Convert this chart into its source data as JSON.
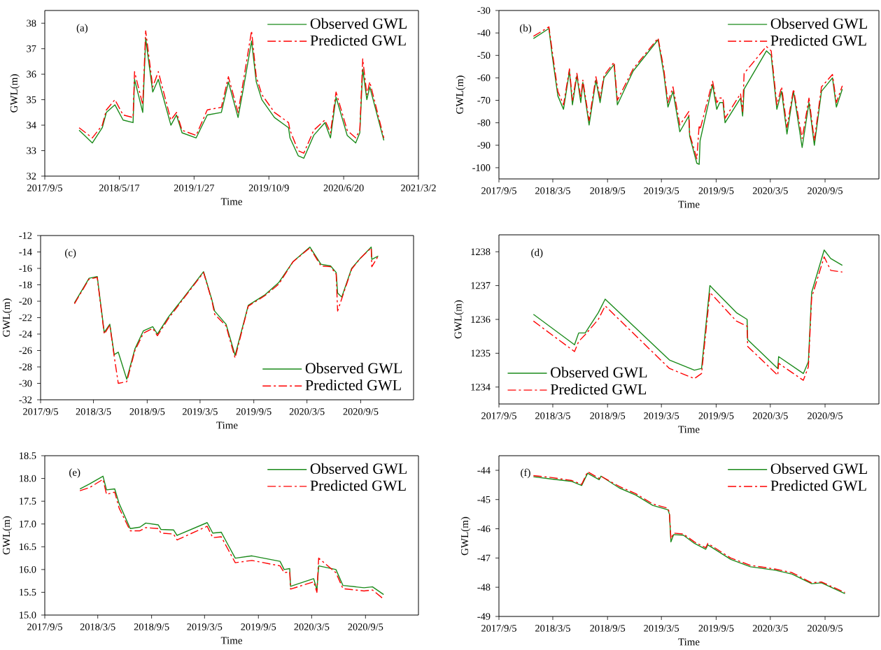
{
  "chart_data": [
    {
      "type": "line",
      "annotations": [
        "(a)"
      ],
      "xlabel": "Time",
      "ylabel": "GWL(m)",
      "legend": "top right",
      "xlim": [
        "2017-09-05",
        "2021-03-02"
      ],
      "xticks": [
        {
          "value": "2017-09-05",
          "label": "2017/9/5"
        },
        {
          "value": "2018-05-17",
          "label": "2018/5/17"
        },
        {
          "value": "2019-01-27",
          "label": "2019/1/27"
        },
        {
          "value": "2019-10-09",
          "label": "2019/10/9"
        },
        {
          "value": "2020-06-20",
          "label": "2020/6/20"
        },
        {
          "value": "2021-03-02",
          "label": "2021/3/2"
        }
      ],
      "ylim": [
        32,
        38.5
      ],
      "yticks": [
        32,
        33,
        34,
        35,
        36,
        37,
        38
      ],
      "x": [
        "2017-12-31",
        "2018-02-14",
        "2018-03-20",
        "2018-04-03",
        "2018-05-02",
        "2018-05-30",
        "2018-07-03",
        "2018-07-08",
        "2018-08-05",
        "2018-08-15",
        "2018-09-08",
        "2018-09-27",
        "2018-11-09",
        "2018-11-28",
        "2018-12-17",
        "2019-02-03",
        "2019-03-13",
        "2019-04-30",
        "2019-05-24",
        "2019-06-26",
        "2019-07-15",
        "2019-08-11",
        "2019-08-27",
        "2019-09-15",
        "2019-10-28",
        "2019-12-15",
        "2019-12-20",
        "2020-01-17",
        "2020-02-05",
        "2020-03-10",
        "2020-04-17",
        "2020-05-06",
        "2020-05-25",
        "2020-07-02",
        "2020-07-31",
        "2020-08-14",
        "2020-08-24",
        "2020-09-07",
        "2020-09-17",
        "2020-11-04"
      ],
      "series": [
        {
          "name": "Observed GWL",
          "color": "#1a8a1a",
          "line_style": "solid",
          "values": [
            33.8,
            33.3,
            33.9,
            34.5,
            34.8,
            34.2,
            34.1,
            35.8,
            34.5,
            37.4,
            35.3,
            35.8,
            34.0,
            34.4,
            33.7,
            33.5,
            34.4,
            34.5,
            35.7,
            34.3,
            35.5,
            37.3,
            35.7,
            35.0,
            34.3,
            33.9,
            33.5,
            32.8,
            32.7,
            33.6,
            34.1,
            33.5,
            35.1,
            33.6,
            33.3,
            33.7,
            36.2,
            35.0,
            35.5,
            33.4
          ]
        },
        {
          "name": "Predicted GWL",
          "color": "#ff0000",
          "line_style": "dashdot",
          "values": [
            33.9,
            33.5,
            34.0,
            34.6,
            35.0,
            34.4,
            34.3,
            36.1,
            34.8,
            37.7,
            35.5,
            36.1,
            34.2,
            34.5,
            33.8,
            33.6,
            34.6,
            34.7,
            35.9,
            34.5,
            35.8,
            37.7,
            35.9,
            35.2,
            34.5,
            34.1,
            33.8,
            33.0,
            32.9,
            33.8,
            34.2,
            33.7,
            35.3,
            33.8,
            33.5,
            33.8,
            36.6,
            35.2,
            35.7,
            33.5
          ]
        }
      ]
    },
    {
      "type": "line",
      "annotations": [
        "(b)"
      ],
      "xlabel": "Time",
      "ylabel": "GWL(m)",
      "legend": "top right",
      "xlim": [
        "2017-09-05",
        "2021-03-05"
      ],
      "xticks": [
        {
          "value": "2017-09-05",
          "label": "2017/9/5"
        },
        {
          "value": "2018-03-05",
          "label": "2018/3/5"
        },
        {
          "value": "2018-09-05",
          "label": "2018/9/5"
        },
        {
          "value": "2019-03-05",
          "label": "2019/3/5"
        },
        {
          "value": "2019-09-05",
          "label": "2019/9/5"
        },
        {
          "value": "2020-03-05",
          "label": "2020/3/5"
        },
        {
          "value": "2020-09-05",
          "label": "2020/9/5"
        }
      ],
      "ylim": [
        -105,
        -30
      ],
      "yticks": [
        -100,
        -90,
        -80,
        -70,
        -60,
        -50,
        -40,
        -30
      ],
      "x": [
        "2017-12-30",
        "2018-02-20",
        "2018-03-03",
        "2018-03-22",
        "2018-04-10",
        "2018-04-30",
        "2018-05-10",
        "2018-05-25",
        "2018-06-07",
        "2018-06-14",
        "2018-07-05",
        "2018-07-28",
        "2018-08-11",
        "2018-08-24",
        "2018-09-27",
        "2018-10-08",
        "2018-11-30",
        "2019-02-22",
        "2019-03-13",
        "2019-03-27",
        "2019-04-13",
        "2019-05-06",
        "2019-06-05",
        "2019-06-08",
        "2019-07-02",
        "2019-07-10",
        "2019-07-13",
        "2019-08-24",
        "2019-09-07",
        "2019-09-17",
        "2019-09-28",
        "2019-10-05",
        "2019-11-26",
        "2019-12-03",
        "2019-12-08",
        "2020-02-21",
        "2020-03-08",
        "2020-03-27",
        "2020-04-12",
        "2020-04-30",
        "2020-05-22",
        "2020-06-20",
        "2020-07-13",
        "2020-07-31",
        "2020-08-24",
        "2020-09-30",
        "2020-10-13",
        "2020-11-02"
      ],
      "series": [
        {
          "name": "Observed GWL",
          "color": "#1a8a1a",
          "line_style": "solid",
          "values": [
            -42.5,
            -38,
            -50,
            -68,
            -74,
            -57,
            -72,
            -59,
            -71,
            -62,
            -81,
            -61,
            -71,
            -60,
            -54,
            -72,
            -57,
            -43,
            -58,
            -73,
            -66,
            -84,
            -77,
            -86,
            -98,
            -98.5,
            -88,
            -63,
            -74,
            -71,
            -71,
            -80,
            -69,
            -77,
            -65,
            -48,
            -50,
            -74,
            -66,
            -85,
            -66,
            -91,
            -71,
            -90,
            -66,
            -60,
            -73,
            -65
          ]
        },
        {
          "name": "Predicted GWL",
          "color": "#ff0000",
          "line_style": "dashdot",
          "values": [
            -41.5,
            -37.3,
            -48,
            -66,
            -72,
            -56,
            -70,
            -58,
            -69,
            -61,
            -79,
            -59.5,
            -69,
            -59,
            -53,
            -70,
            -56,
            -42.3,
            -56,
            -71,
            -64,
            -81,
            -75,
            -85,
            -96,
            -81,
            -83,
            -61.5,
            -71,
            -69,
            -69,
            -78,
            -67,
            -75,
            -58,
            -46,
            -48,
            -72,
            -64,
            -82,
            -65,
            -87,
            -69,
            -88,
            -64,
            -58.5,
            -71,
            -63.5
          ]
        }
      ]
    },
    {
      "type": "line",
      "annotations": [
        "(c)"
      ],
      "xlabel": "Time",
      "ylabel": "GWL(m)",
      "legend": "bottom right",
      "xlim": [
        "2017-09-05",
        "2021-03-05"
      ],
      "xticks": [
        {
          "value": "2017-09-05",
          "label": "2017/9/5"
        },
        {
          "value": "2018-03-05",
          "label": "2018/3/5"
        },
        {
          "value": "2018-09-05",
          "label": "2018/9/5"
        },
        {
          "value": "2019-03-05",
          "label": "2019/3/5"
        },
        {
          "value": "2019-09-05",
          "label": "2019/9/5"
        },
        {
          "value": "2020-03-05",
          "label": "2020/3/5"
        },
        {
          "value": "2020-09-05",
          "label": "2020/9/5"
        }
      ],
      "ylim": [
        -32,
        -12
      ],
      "yticks": [
        -32,
        -30,
        -28,
        -26,
        -24,
        -22,
        -20,
        -18,
        -16,
        -14,
        -12
      ],
      "x": [
        "2017-12-30",
        "2018-02-18",
        "2018-03-18",
        "2018-04-11",
        "2018-04-30",
        "2018-05-15",
        "2018-05-29",
        "2018-06-27",
        "2018-07-25",
        "2018-08-23",
        "2018-09-24",
        "2018-10-10",
        "2018-11-17",
        "2019-01-09",
        "2019-03-17",
        "2019-04-15",
        "2019-04-24",
        "2019-06-02",
        "2019-06-16",
        "2019-07-03",
        "2019-08-17",
        "2019-10-14",
        "2019-11-30",
        "2020-01-17",
        "2020-03-15",
        "2020-04-22",
        "2020-05-25",
        "2020-06-13",
        "2020-06-18",
        "2020-07-02",
        "2020-08-05",
        "2020-09-03",
        "2020-10-11",
        "2020-10-13",
        "2020-11-04"
      ],
      "series": [
        {
          "name": "Observed GWL",
          "color": "#1a8a1a",
          "line_style": "solid",
          "values": [
            -20.2,
            -17.2,
            -17.0,
            -23.8,
            -22.8,
            -26.5,
            -26.2,
            -29.5,
            -25.8,
            -23.6,
            -23.1,
            -24.0,
            -21.9,
            -19.5,
            -16.4,
            -19.9,
            -21.2,
            -22.8,
            -24.5,
            -26.6,
            -20.5,
            -19.2,
            -17.7,
            -15.2,
            -13.4,
            -15.5,
            -15.7,
            -16.5,
            -19.0,
            -19.5,
            -16.0,
            -14.8,
            -13.4,
            -14.9,
            -14.5
          ]
        },
        {
          "name": "Predicted GWL",
          "color": "#ff0000",
          "line_style": "dashdot",
          "values": [
            -20.3,
            -17.3,
            -17.1,
            -24.0,
            -22.9,
            -26.7,
            -30.0,
            -29.8,
            -26.0,
            -23.9,
            -23.3,
            -24.2,
            -22.1,
            -19.6,
            -16.5,
            -20.0,
            -21.6,
            -23.0,
            -24.8,
            -26.9,
            -20.6,
            -19.3,
            -17.9,
            -15.2,
            -13.5,
            -15.7,
            -15.8,
            -16.7,
            -21.2,
            -19.7,
            -16.1,
            -14.8,
            -13.5,
            -15.8,
            -14.5
          ]
        }
      ]
    },
    {
      "type": "line",
      "annotations": [
        "(d)"
      ],
      "xlabel": "Time",
      "ylabel": "GWL(m)",
      "legend": "bottom left",
      "xlim": [
        "2017-09-05",
        "2021-03-05"
      ],
      "xticks": [
        {
          "value": "2017-09-05",
          "label": "2017/9/5"
        },
        {
          "value": "2018-03-05",
          "label": "2018/3/5"
        },
        {
          "value": "2018-09-05",
          "label": "2018/9/5"
        },
        {
          "value": "2019-03-05",
          "label": "2019/3/5"
        },
        {
          "value": "2019-09-05",
          "label": "2019/9/5"
        },
        {
          "value": "2020-03-05",
          "label": "2020/3/5"
        },
        {
          "value": "2020-09-05",
          "label": "2020/9/5"
        }
      ],
      "ylim": [
        1233.5,
        1238.5
      ],
      "yticks": [
        1234,
        1235,
        1236,
        1237,
        1238
      ],
      "x": [
        "2017-12-30",
        "2018-05-17",
        "2018-05-31",
        "2018-06-22",
        "2018-08-05",
        "2018-08-28",
        "2019-04-01",
        "2019-06-24",
        "2019-07-18",
        "2019-08-15",
        "2019-11-12",
        "2019-12-18",
        "2019-12-20",
        "2020-03-30",
        "2020-04-02",
        "2020-06-24",
        "2020-07-11",
        "2020-07-22",
        "2020-09-02",
        "2020-09-24",
        "2020-11-02"
      ],
      "series": [
        {
          "name": "Observed GWL",
          "color": "#1a8a1a",
          "line_style": "solid",
          "values": [
            1236.15,
            1235.25,
            1235.6,
            1235.6,
            1236.2,
            1236.6,
            1234.8,
            1234.5,
            1234.55,
            1237.0,
            1236.2,
            1236.0,
            1235.4,
            1234.55,
            1234.9,
            1234.4,
            1234.75,
            1236.8,
            1238.05,
            1237.8,
            1237.6
          ]
        },
        {
          "name": "Predicted GWL",
          "color": "#ff0000",
          "line_style": "dashdot",
          "values": [
            1235.95,
            1235.05,
            1235.35,
            1235.55,
            1236.0,
            1236.4,
            1234.55,
            1234.25,
            1234.4,
            1236.8,
            1235.95,
            1235.8,
            1235.2,
            1234.35,
            1234.7,
            1234.2,
            1234.6,
            1236.65,
            1237.85,
            1237.45,
            1237.4
          ]
        }
      ]
    },
    {
      "type": "line",
      "annotations": [
        "(e)"
      ],
      "xlabel": "Time",
      "ylabel": "GWL(m)",
      "legend": "top right",
      "xlim": [
        "2017-09-05",
        "2021-03-05"
      ],
      "xticks": [
        {
          "value": "2017-09-05",
          "label": "2017/9/5"
        },
        {
          "value": "2018-03-05",
          "label": "2018/3/5"
        },
        {
          "value": "2018-09-05",
          "label": "2018/9/5"
        },
        {
          "value": "2019-03-05",
          "label": "2019/3/5"
        },
        {
          "value": "2019-09-05",
          "label": "2019/9/5"
        },
        {
          "value": "2020-03-05",
          "label": "2020/3/5"
        },
        {
          "value": "2020-09-05",
          "label": "2020/9/5"
        }
      ],
      "ylim": [
        15,
        18.5
      ],
      "yticks": [
        {
          "value": 15,
          "label": "15.0"
        },
        15.5,
        {
          "value": 16,
          "label": "16.0"
        },
        16.5,
        {
          "value": 17,
          "label": "17.0"
        },
        17.5,
        {
          "value": 18,
          "label": "18.0"
        },
        18.5
      ],
      "x": [
        "2018-01-03",
        "2018-02-05",
        "2018-03-23",
        "2018-04-04",
        "2018-05-02",
        "2018-05-17",
        "2018-06-24",
        "2018-07-27",
        "2018-08-16",
        "2018-09-28",
        "2018-10-07",
        "2018-11-19",
        "2018-12-01",
        "2019-03-14",
        "2019-04-02",
        "2019-05-01",
        "2019-05-22",
        "2019-06-18",
        "2019-08-14",
        "2019-11-18",
        "2019-12-02",
        "2019-12-21",
        "2019-12-24",
        "2020-03-12",
        "2020-03-23",
        "2020-03-29",
        "2020-05-27",
        "2020-06-20",
        "2020-08-31",
        "2020-09-29",
        "2020-11-06"
      ],
      "series": [
        {
          "name": "Observed GWL",
          "color": "#1a8a1a",
          "line_style": "solid",
          "values": [
            17.77,
            17.88,
            18.05,
            17.75,
            17.77,
            17.45,
            16.9,
            16.93,
            17.02,
            16.98,
            16.88,
            16.87,
            16.75,
            17.03,
            16.8,
            16.82,
            16.57,
            16.25,
            16.3,
            16.18,
            16.0,
            16.02,
            15.63,
            15.8,
            15.55,
            16.08,
            16.0,
            15.65,
            15.6,
            15.62,
            15.45
          ]
        },
        {
          "name": "Predicted GWL",
          "color": "#ff0000",
          "line_style": "dashdot",
          "values": [
            17.73,
            17.8,
            17.98,
            17.65,
            17.7,
            17.35,
            16.85,
            16.85,
            16.92,
            16.9,
            16.8,
            16.78,
            16.65,
            16.95,
            16.7,
            16.72,
            16.47,
            16.15,
            16.2,
            16.08,
            15.93,
            15.95,
            15.57,
            15.73,
            15.5,
            16.25,
            15.93,
            15.58,
            15.53,
            15.55,
            15.35
          ]
        }
      ]
    },
    {
      "type": "line",
      "annotations": [
        "(f)"
      ],
      "xlabel": "Time",
      "ylabel": "GWL(m)",
      "legend": "top right",
      "xlim": [
        "2017-09-05",
        "2021-03-05"
      ],
      "xticks": [
        {
          "value": "2017-09-05",
          "label": "2017/9/5"
        },
        {
          "value": "2018-03-05",
          "label": "2018/3/5"
        },
        {
          "value": "2018-09-05",
          "label": "2018/9/5"
        },
        {
          "value": "2019-03-05",
          "label": "2019/3/5"
        },
        {
          "value": "2019-09-05",
          "label": "2019/9/5"
        },
        {
          "value": "2020-03-05",
          "label": "2020/3/5"
        },
        {
          "value": "2020-09-05",
          "label": "2020/9/5"
        }
      ],
      "ylim": [
        -49,
        -43.5
      ],
      "yticks": [
        -49,
        -48,
        -47,
        -46,
        -45,
        -44
      ],
      "x": [
        "2017-12-30",
        "2018-03-03",
        "2018-05-08",
        "2018-06-10",
        "2018-06-30",
        "2018-08-08",
        "2018-08-14",
        "2018-10-14",
        "2018-12-09",
        "2019-02-04",
        "2019-03-27",
        "2019-04-01",
        "2019-04-06",
        "2019-04-15",
        "2019-05-18",
        "2019-06-24",
        "2019-08-01",
        "2019-08-08",
        "2019-10-24",
        "2019-12-29",
        "2020-03-22",
        "2020-05-17",
        "2020-07-22",
        "2020-08-24",
        "2020-11-11"
      ],
      "series": [
        {
          "name": "Observed GWL",
          "color": "#1a8a1a",
          "line_style": "solid",
          "values": [
            -44.22,
            -44.3,
            -44.38,
            -44.52,
            -44.1,
            -44.32,
            -44.2,
            -44.6,
            -44.85,
            -45.2,
            -45.35,
            -45.5,
            -46.45,
            -46.2,
            -46.22,
            -46.5,
            -46.7,
            -46.55,
            -47.05,
            -47.3,
            -47.42,
            -47.55,
            -47.88,
            -47.85,
            -48.22
          ]
        },
        {
          "name": "Predicted GWL",
          "color": "#ff0000",
          "line_style": "dashdot",
          "values": [
            -44.18,
            -44.25,
            -44.35,
            -44.48,
            -44.05,
            -44.28,
            -44.2,
            -44.55,
            -44.8,
            -45.15,
            -45.3,
            -45.45,
            -46.35,
            -46.15,
            -46.18,
            -46.45,
            -46.65,
            -46.5,
            -47.0,
            -47.25,
            -47.38,
            -47.5,
            -47.85,
            -47.82,
            -48.18
          ]
        }
      ]
    }
  ]
}
